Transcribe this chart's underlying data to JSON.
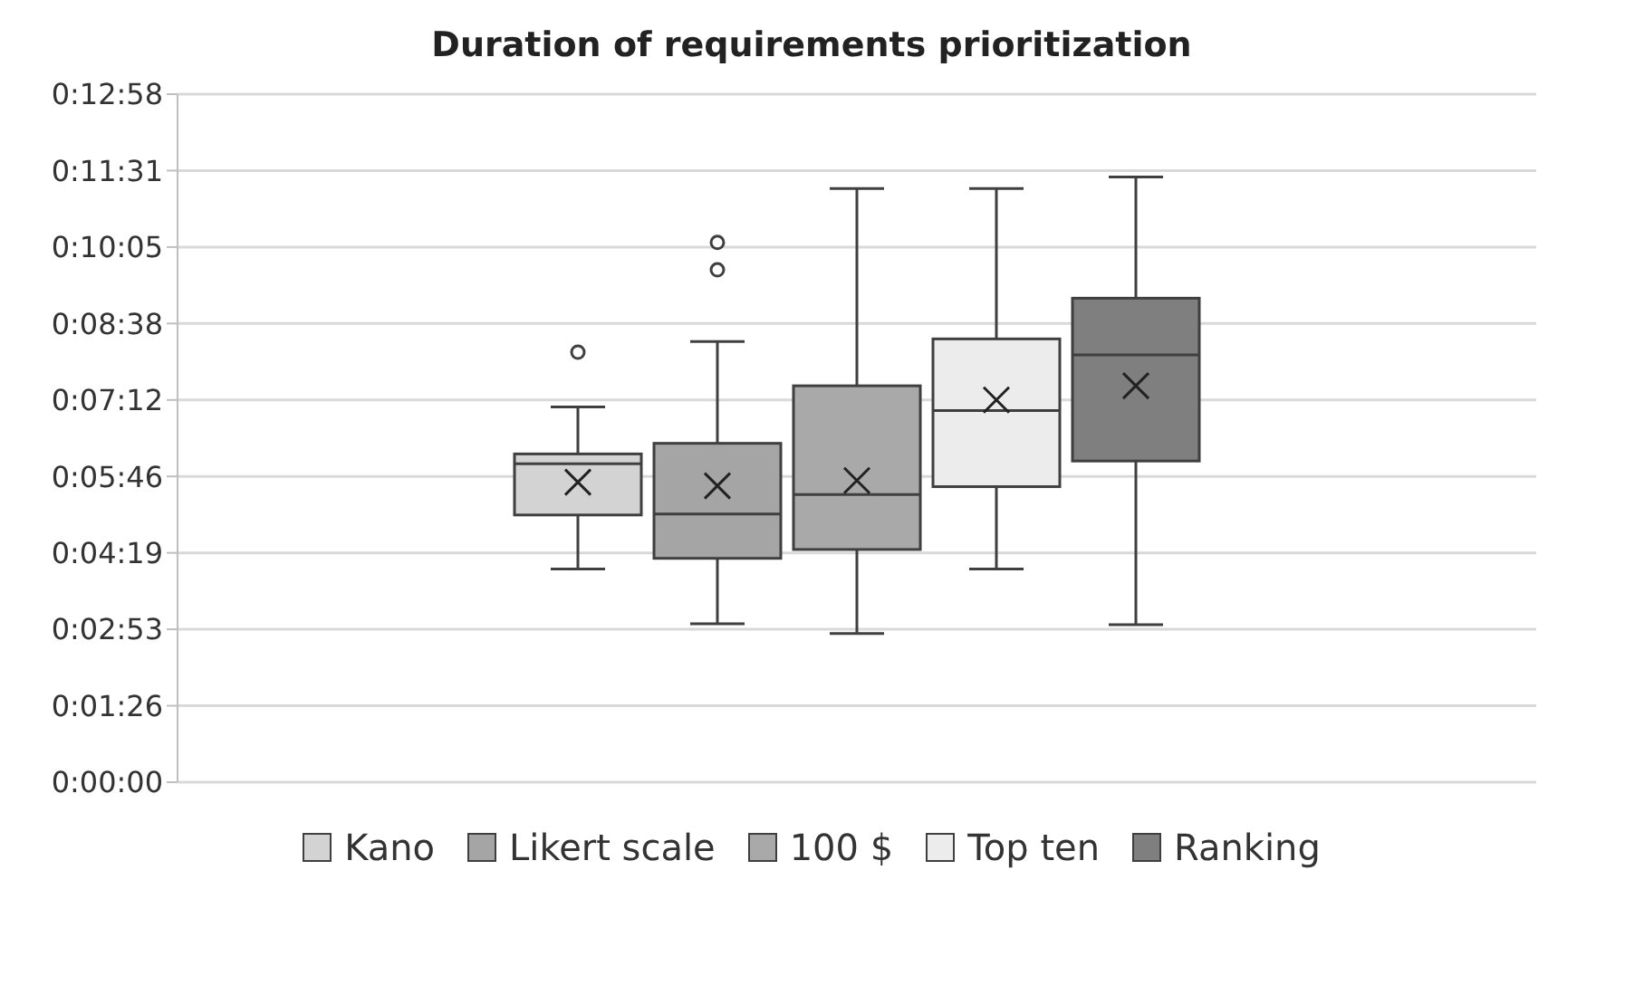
{
  "chart_data": {
    "type": "box",
    "title": "Duration of requirements prioritization",
    "categories": [
      null
    ],
    "ylim": [
      0,
      777.6
    ],
    "yticks": [
      {
        "value": 0,
        "label": "0:00:00"
      },
      {
        "value": 86.4,
        "label": "0:01:26"
      },
      {
        "value": 172.8,
        "label": "0:02:53"
      },
      {
        "value": 259.2,
        "label": "0:04:19"
      },
      {
        "value": 345.6,
        "label": "0:05:46"
      },
      {
        "value": 432,
        "label": "0:07:12"
      },
      {
        "value": 518.4,
        "label": "0:08:38"
      },
      {
        "value": 604.8,
        "label": "0:10:05"
      },
      {
        "value": 691.2,
        "label": "0:11:31"
      },
      {
        "value": 777.6,
        "label": "0:12:58"
      }
    ],
    "grid": "y",
    "legend": "bottom",
    "tick_labels": "y",
    "series": [
      {
        "name": "Kano",
        "color": "#d3d3d3",
        "boxes": [
          {
            "low": 241,
            "q1": 302,
            "median": 360,
            "q3": 371,
            "high": 424,
            "mean": 339,
            "outliers": [
              486
            ]
          }
        ]
      },
      {
        "name": "Likert scale",
        "color": "#a5a5a5",
        "boxes": [
          {
            "low": 179,
            "q1": 253,
            "median": 303,
            "q3": 383,
            "high": 498,
            "mean": 335,
            "outliers": [
              579,
              610
            ]
          }
        ]
      },
      {
        "name": "100 $",
        "color": "#a9a9a9",
        "boxes": [
          {
            "low": 168,
            "q1": 263,
            "median": 325,
            "q3": 448,
            "high": 671,
            "mean": 341
          }
        ]
      },
      {
        "name": "Top ten",
        "color": "#ececec",
        "boxes": [
          {
            "low": 241,
            "q1": 334,
            "median": 420,
            "q3": 501,
            "high": 671,
            "mean": 432
          }
        ]
      },
      {
        "name": "Ranking",
        "color": "#7f7f7f",
        "boxes": [
          {
            "low": 178,
            "q1": 363,
            "median": 483,
            "q3": 547,
            "high": 684,
            "mean": 448
          }
        ]
      }
    ]
  }
}
